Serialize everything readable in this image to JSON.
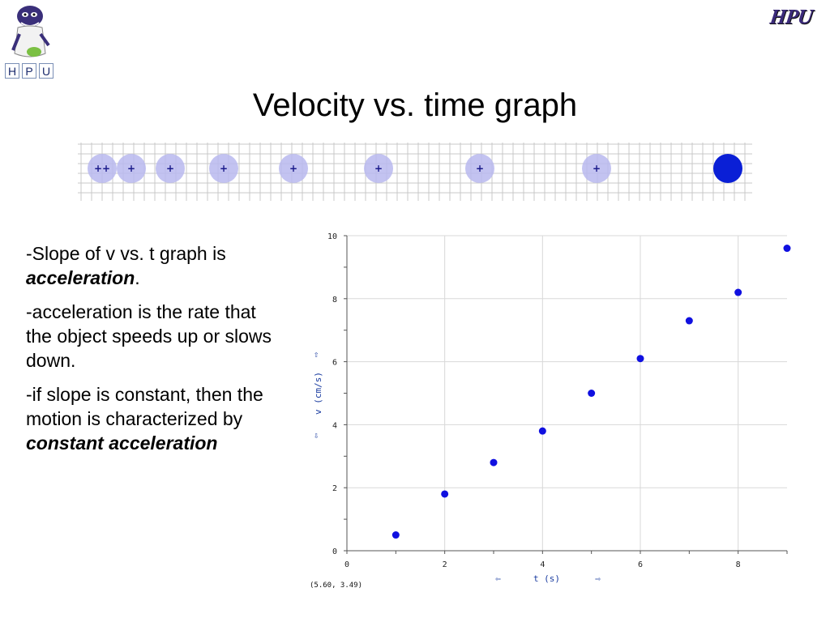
{
  "title": "Velocity vs. time graph",
  "logo_left_letters": [
    "H",
    "P",
    "U"
  ],
  "logo_right_text": "HPU",
  "bullets": [
    {
      "parts": [
        {
          "text": "-Slope of v vs. t graph is ",
          "em": false
        },
        {
          "text": "acceleration",
          "em": true
        },
        {
          "text": ".",
          "em": false
        }
      ]
    },
    {
      "parts": [
        {
          "text": "-acceleration is the rate that the object speeds up or slows down.",
          "em": false
        }
      ]
    },
    {
      "parts": [
        {
          "text": "-if slope is constant, then the motion is characterized by ",
          "em": false
        },
        {
          "text": "constant acceleration",
          "em": true
        }
      ]
    }
  ],
  "motion_strip": {
    "marker_label": "+",
    "double_marker_label": "++"
  },
  "chart_data": {
    "type": "scatter",
    "xlabel": "t (s)",
    "ylabel": "v (cm/s)",
    "xlim": [
      0,
      9
    ],
    "ylim": [
      0,
      10
    ],
    "x_ticks": [
      0,
      2,
      4,
      6,
      8
    ],
    "y_ticks": [
      0,
      2,
      4,
      6,
      8,
      10
    ],
    "grid": true,
    "point_color": "#1010e0",
    "points": [
      {
        "x": 1,
        "y": 0.5
      },
      {
        "x": 2,
        "y": 1.8
      },
      {
        "x": 3,
        "y": 2.8
      },
      {
        "x": 4,
        "y": 3.8
      },
      {
        "x": 5,
        "y": 5.0
      },
      {
        "x": 6,
        "y": 6.1
      },
      {
        "x": 7,
        "y": 7.3
      },
      {
        "x": 8,
        "y": 8.2
      },
      {
        "x": 9,
        "y": 9.6
      }
    ],
    "readout": "(5.60, 3.49)",
    "x_arrows": [
      "⇦",
      "⇨"
    ],
    "y_arrows": [
      "⇧",
      "⇩"
    ]
  }
}
